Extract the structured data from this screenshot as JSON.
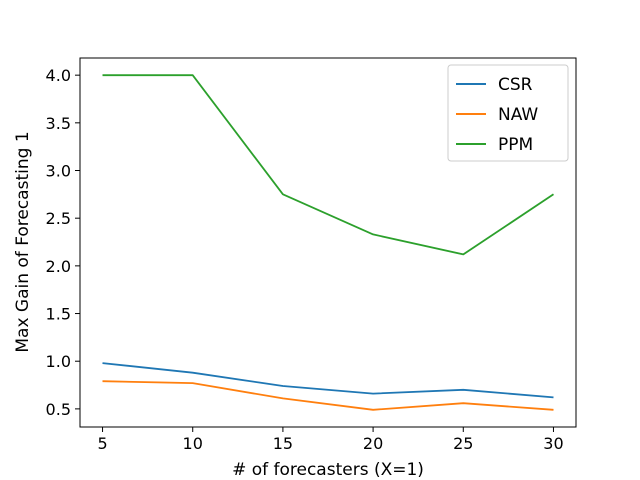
{
  "chart_data": {
    "type": "line",
    "xlabel": "# of forecasters (X=1)",
    "ylabel": "Max Gain of Forecasting 1",
    "x": [
      5,
      10,
      15,
      20,
      25,
      30
    ],
    "xticks": [
      5,
      10,
      15,
      20,
      25,
      30
    ],
    "yticks": [
      0.5,
      1.0,
      1.5,
      2.0,
      2.5,
      3.0,
      3.5,
      4.0
    ],
    "xlim": [
      3.75,
      31.25
    ],
    "ylim": [
      0.31,
      4.18
    ],
    "grid": false,
    "legend_position": "top-right",
    "series": [
      {
        "name": "CSR",
        "color": "#1f77b4",
        "values": [
          0.98,
          0.88,
          0.74,
          0.66,
          0.7,
          0.62
        ]
      },
      {
        "name": "NAW",
        "color": "#ff7f0e",
        "values": [
          0.79,
          0.77,
          0.61,
          0.49,
          0.56,
          0.49
        ]
      },
      {
        "name": "PPM",
        "color": "#2ca02c",
        "values": [
          4.0,
          4.0,
          2.75,
          2.33,
          2.12,
          2.75
        ]
      }
    ]
  }
}
